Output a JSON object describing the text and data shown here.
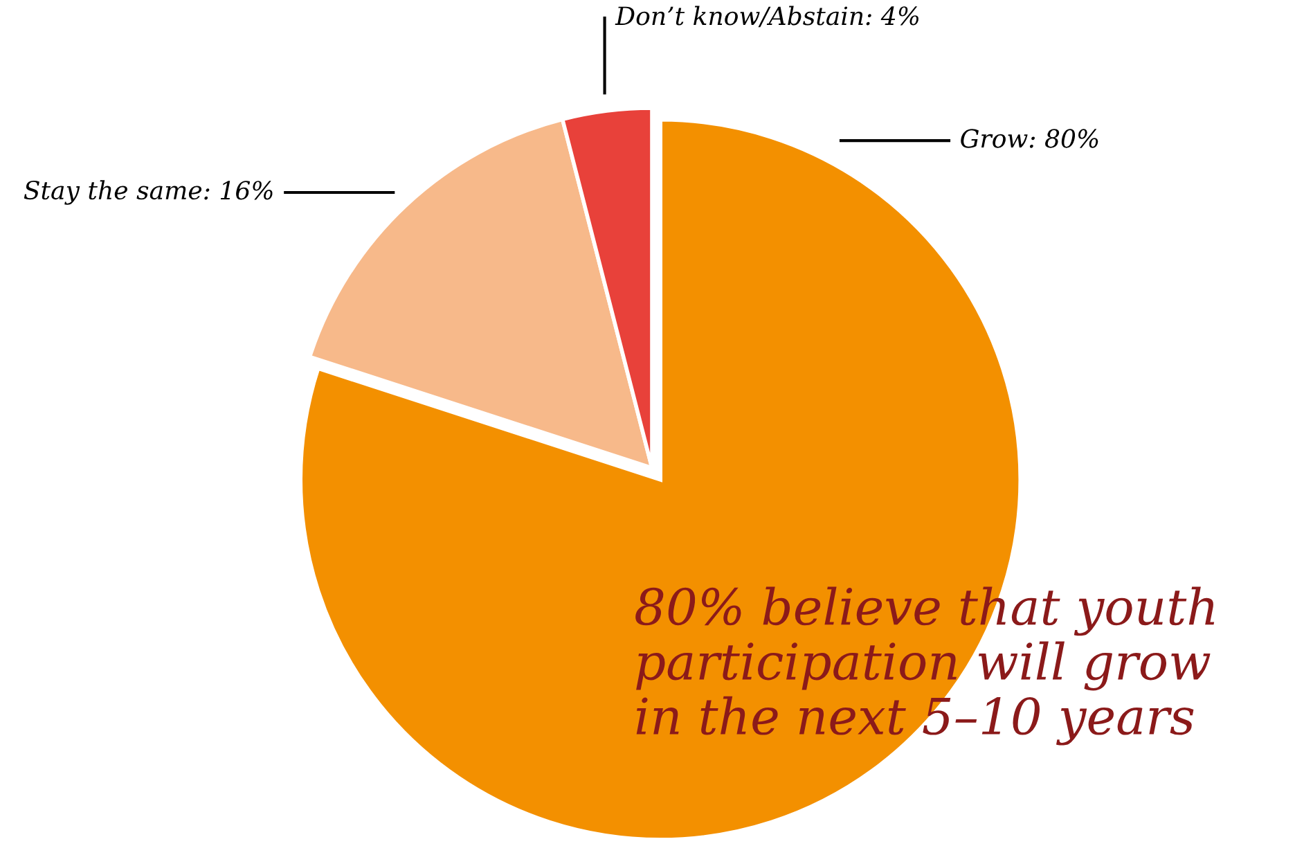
{
  "chart_data": {
    "type": "pie",
    "categories": [
      "Grow",
      "Stay the same",
      "Don’t know/Abstain"
    ],
    "values": [
      80,
      16,
      4
    ],
    "colors": [
      "#f39000",
      "#f7b98a",
      "#e8413a"
    ],
    "value_labels": [
      ": 80%",
      ": 16%",
      ": 4%"
    ],
    "annotations": [
      "80% believe that youth\nparticipation will grow\nin the next 5–10 years"
    ],
    "legend": false
  }
}
